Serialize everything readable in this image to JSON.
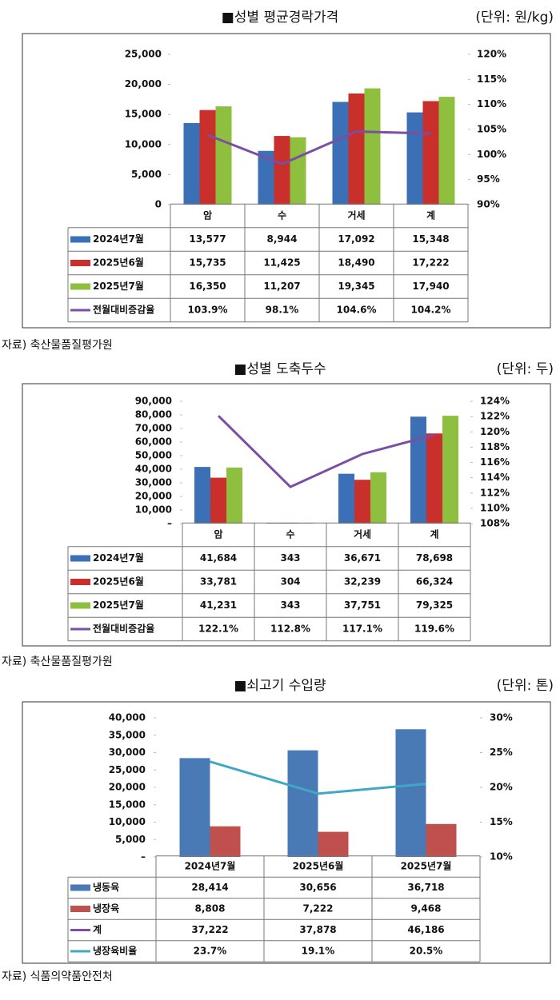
{
  "chart_data": [
    {
      "type": "bar",
      "title": "■성별 평균경락가격",
      "unit": "(단위: 원/kg)",
      "source": "자료) 축산물품질평가원",
      "categories": [
        "암",
        "수",
        "거세",
        "계"
      ],
      "series": [
        {
          "name": "2024년7월",
          "color": "#3b6fb6",
          "values": [
            13577,
            8944,
            17092,
            15348
          ],
          "value_labels": [
            "13,577",
            "8,944",
            "17,092",
            "15,348"
          ]
        },
        {
          "name": "2025년6월",
          "color": "#c9302c",
          "values": [
            15735,
            11425,
            18490,
            17222
          ],
          "value_labels": [
            "15,735",
            "11,425",
            "18,490",
            "17,222"
          ]
        },
        {
          "name": "2025년7월",
          "color": "#8fbf3f",
          "values": [
            16350,
            11207,
            19345,
            17940
          ],
          "value_labels": [
            "16,350",
            "11,207",
            "19,345",
            "17,940"
          ]
        },
        {
          "name": "전월대비증감율",
          "type": "line",
          "axis": "y2",
          "color": "#7a4fa3",
          "values": [
            103.9,
            98.1,
            104.6,
            104.2
          ],
          "value_labels": [
            "103.9%",
            "98.1%",
            "104.6%",
            "104.2%"
          ]
        }
      ],
      "ylim": [
        0,
        25000
      ],
      "yticks": [
        0,
        {
          "value": 5000,
          "label": "5,000"
        },
        {
          "value": 10000,
          "label": "10,000"
        },
        {
          "value": 15000,
          "label": "15,000"
        },
        {
          "value": 20000,
          "label": "20,000"
        },
        {
          "value": 25000,
          "label": "25,000"
        }
      ],
      "y2lim": [
        90,
        120
      ],
      "y2ticks": [
        {
          "value": 90,
          "label": "90%"
        },
        {
          "value": 95,
          "label": "95%"
        },
        {
          "value": 100,
          "label": "100%"
        },
        {
          "value": 105,
          "label": "105%"
        },
        {
          "value": 110,
          "label": "110%"
        },
        {
          "value": 115,
          "label": "115%"
        },
        {
          "value": 120,
          "label": "120%"
        }
      ]
    },
    {
      "type": "bar",
      "title": "■성별 도축두수",
      "unit": "(단위: 두)",
      "source": "자료) 축산물품질평가원",
      "categories": [
        "암",
        "수",
        "거세",
        "계"
      ],
      "series": [
        {
          "name": "2024년7월",
          "color": "#3b6fb6",
          "values": [
            41684,
            343,
            36671,
            78698
          ],
          "value_labels": [
            "41,684",
            "343",
            "36,671",
            "78,698"
          ]
        },
        {
          "name": "2025년6월",
          "color": "#c9302c",
          "values": [
            33781,
            304,
            32239,
            66324
          ],
          "value_labels": [
            "33,781",
            "304",
            "32,239",
            "66,324"
          ]
        },
        {
          "name": "2025년7월",
          "color": "#8fbf3f",
          "values": [
            41231,
            343,
            37751,
            79325
          ],
          "value_labels": [
            "41,231",
            "343",
            "37,751",
            "79,325"
          ]
        },
        {
          "name": "전월대비증감율",
          "type": "line",
          "axis": "y2",
          "color": "#7a4fa3",
          "values": [
            122.1,
            112.8,
            117.1,
            119.6
          ],
          "value_labels": [
            "122.1%",
            "112.8%",
            "117.1%",
            "119.6%"
          ]
        }
      ],
      "ylim": [
        0,
        90000
      ],
      "yticks": [
        {
          "value": 0,
          "label": "–"
        },
        {
          "value": 10000,
          "label": "10,000"
        },
        {
          "value": 20000,
          "label": "20,000"
        },
        {
          "value": 30000,
          "label": "30,000"
        },
        {
          "value": 40000,
          "label": "40,000"
        },
        {
          "value": 50000,
          "label": "50,000"
        },
        {
          "value": 60000,
          "label": "60,000"
        },
        {
          "value": 70000,
          "label": "70,000"
        },
        {
          "value": 80000,
          "label": "80,000"
        },
        {
          "value": 90000,
          "label": "90,000"
        }
      ],
      "y2lim": [
        108,
        124
      ],
      "y2ticks": [
        {
          "value": 108,
          "label": "108%"
        },
        {
          "value": 110,
          "label": "110%"
        },
        {
          "value": 112,
          "label": "112%"
        },
        {
          "value": 114,
          "label": "114%"
        },
        {
          "value": 116,
          "label": "116%"
        },
        {
          "value": 118,
          "label": "118%"
        },
        {
          "value": 120,
          "label": "120%"
        },
        {
          "value": 122,
          "label": "122%"
        },
        {
          "value": 124,
          "label": "124%"
        }
      ]
    },
    {
      "type": "bar",
      "title": "■쇠고기 수입량",
      "unit": "(단위: 톤)",
      "source": "자료) 식품의약품안전처",
      "categories": [
        "2024년7월",
        "2025년6월",
        "2025년7월"
      ],
      "series": [
        {
          "name": "냉동육",
          "color": "#4a7ab6",
          "values": [
            28414,
            30656,
            36718
          ],
          "value_labels": [
            "28,414",
            "30,656",
            "36,718"
          ]
        },
        {
          "name": "냉장육",
          "color": "#c0504d",
          "values": [
            8808,
            7222,
            9468
          ],
          "value_labels": [
            "8,808",
            "7,222",
            "9,468"
          ]
        },
        {
          "name": "계",
          "type": "line",
          "axis": "y2",
          "color": "#7a4fa3",
          "values": [
            37222,
            37878,
            46186
          ],
          "value_labels": [
            "37,222",
            "37,878",
            "46,186"
          ]
        },
        {
          "name": "냉장육비율",
          "type": "line",
          "axis": "y2",
          "color": "#3fa8c4",
          "values": [
            23.7,
            19.1,
            20.5
          ],
          "value_labels": [
            "23.7%",
            "19.1%",
            "20.5%"
          ]
        }
      ],
      "ylim": [
        0,
        40000
      ],
      "yticks": [
        {
          "value": 0,
          "label": "–"
        },
        {
          "value": 5000,
          "label": "5,000"
        },
        {
          "value": 10000,
          "label": "10,000"
        },
        {
          "value": 15000,
          "label": "15,000"
        },
        {
          "value": 20000,
          "label": "20,000"
        },
        {
          "value": 25000,
          "label": "25,000"
        },
        {
          "value": 30000,
          "label": "30,000"
        },
        {
          "value": 35000,
          "label": "35,000"
        },
        {
          "value": 40000,
          "label": "40,000"
        }
      ],
      "y2lim": [
        10,
        30
      ],
      "y2ticks": [
        {
          "value": 10,
          "label": "10%"
        },
        {
          "value": 15,
          "label": "15%"
        },
        {
          "value": 20,
          "label": "20%"
        },
        {
          "value": 25,
          "label": "25%"
        },
        {
          "value": 30,
          "label": "30%"
        }
      ]
    }
  ]
}
